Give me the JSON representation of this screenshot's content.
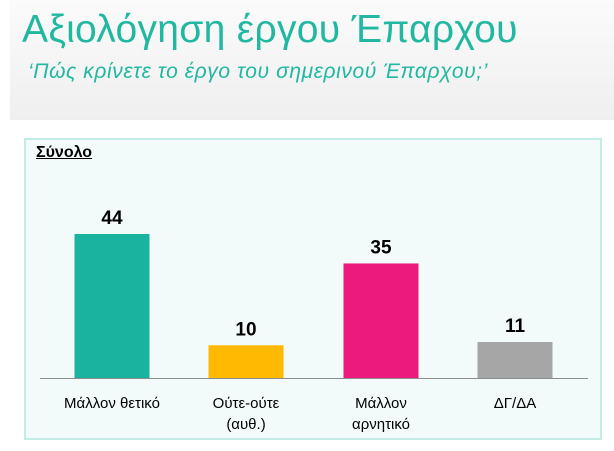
{
  "header": {
    "title": "Αξιολόγηση έργου Έπαρχου",
    "subtitle": "‘Πώς κρίνετε το έργο του σημερινού Έπαρχου;’"
  },
  "panel": {
    "label": "Σύνολο"
  },
  "chart_data": {
    "type": "bar",
    "categories": [
      [
        "Μάλλον θετικό"
      ],
      [
        "Ούτε-ούτε",
        "(αυθ.)"
      ],
      [
        "Μάλλον",
        "αρνητικό"
      ],
      [
        "ΔΓ/ΔΑ"
      ]
    ],
    "values": [
      44,
      10,
      35,
      11
    ],
    "colors": [
      "#1ab39f",
      "#ffb900",
      "#ec1a7c",
      "#a6a6a6"
    ],
    "ylim": [
      0,
      44
    ],
    "grid": false,
    "legend": "none",
    "data_labels": true
  }
}
